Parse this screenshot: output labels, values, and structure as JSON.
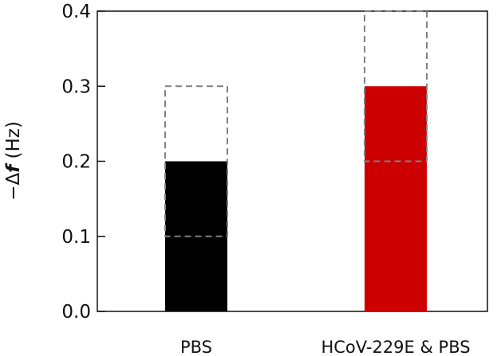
{
  "chart_data": {
    "type": "bar",
    "categories": [
      "PBS",
      "HCoV-229E & PBS"
    ],
    "values": [
      0.2,
      0.3
    ],
    "range_boxes": [
      {
        "low": 0.1,
        "high": 0.3
      },
      {
        "low": 0.2,
        "high": 0.4
      }
    ],
    "bar_colors": [
      "#000000",
      "#cc0000"
    ],
    "range_box_style": "dashed gray outline",
    "range_box_color": "#808080",
    "ylabel": "−Δf (Hz)",
    "ylabel_prefix": "−Δ",
    "ylabel_symbol": "f",
    "ylabel_unit": " (Hz)",
    "ylim": [
      0,
      0.4
    ],
    "yticks": [
      "0.0",
      "0.1",
      "0.2",
      "0.3",
      "0.4"
    ],
    "ytick_values": [
      0,
      0.1,
      0.2,
      0.3,
      0.4
    ],
    "grid": false,
    "legend": "none"
  }
}
